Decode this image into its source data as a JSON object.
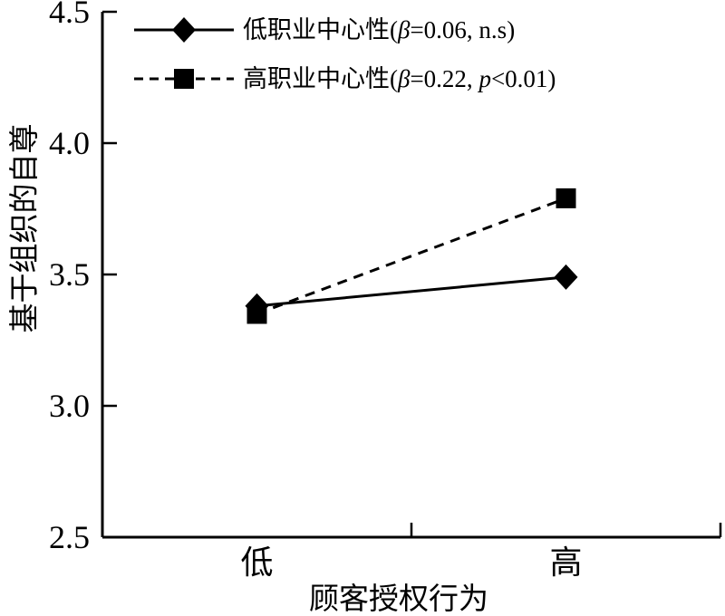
{
  "figure": {
    "background": "#ffffff",
    "ink_color": "#000000"
  },
  "chart_data": {
    "type": "line",
    "title": "",
    "xlabel": "顾客授权行为",
    "ylabel": "基于组织的自尊",
    "categories": [
      "低",
      "高"
    ],
    "ylim": [
      2.5,
      4.5
    ],
    "yticks": [
      4.5,
      4.0,
      3.5,
      3.0,
      2.5
    ],
    "ytick_labels": [
      "4.5",
      "4.0",
      "3.5",
      "3.0",
      "2.5"
    ],
    "grid": false,
    "legend_position": "top-left-inside",
    "series": [
      {
        "name": "低职业中心性(β=0.06, n.s)",
        "name_parts": [
          {
            "text": "低职业中心性(",
            "italic": false
          },
          {
            "text": "β",
            "italic": true
          },
          {
            "text": "=0.06, n.s)",
            "italic": false
          }
        ],
        "marker": "diamond",
        "line_style": "solid",
        "color": "#000000",
        "values": [
          3.38,
          3.49
        ]
      },
      {
        "name": "高职业中心性(β=0.22, p<0.01)",
        "name_parts": [
          {
            "text": "高职业中心性(",
            "italic": false
          },
          {
            "text": "β",
            "italic": true
          },
          {
            "text": "=0.22, ",
            "italic": false
          },
          {
            "text": "p",
            "italic": true
          },
          {
            "text": "<0.01)",
            "italic": false
          }
        ],
        "marker": "square",
        "line_style": "dashed",
        "color": "#000000",
        "values": [
          3.35,
          3.79
        ]
      }
    ]
  }
}
